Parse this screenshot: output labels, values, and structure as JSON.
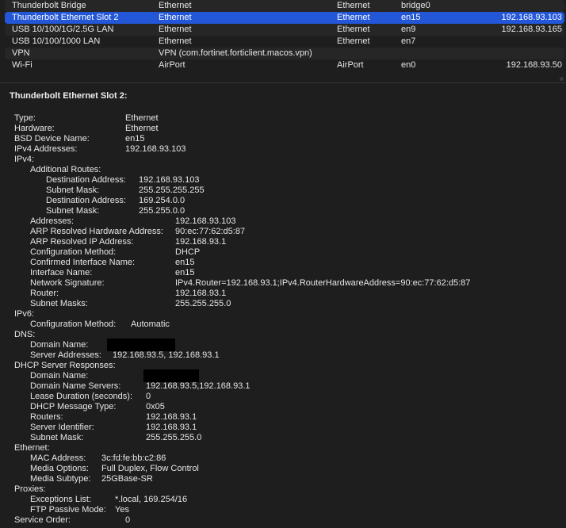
{
  "table": {
    "rows": [
      {
        "name": "Thunderbolt Bridge",
        "type": "Ethernet",
        "hardware": "Ethernet",
        "bsd": "bridge0",
        "ip": ""
      },
      {
        "name": "Thunderbolt Ethernet Slot 2",
        "type": "Ethernet",
        "hardware": "Ethernet",
        "bsd": "en15",
        "ip": "192.168.93.103",
        "selected": true
      },
      {
        "name": "USB 10/100/1G/2.5G LAN",
        "type": "Ethernet",
        "hardware": "Ethernet",
        "bsd": "en9",
        "ip": "192.168.93.165"
      },
      {
        "name": "USB 10/100/1000 LAN",
        "type": "Ethernet",
        "hardware": "Ethernet",
        "bsd": "en7",
        "ip": ""
      },
      {
        "name": "VPN",
        "type": "VPN (com.fortinet.forticlient.macos.vpn)",
        "hardware": "",
        "bsd": "",
        "ip": ""
      },
      {
        "name": "Wi-Fi",
        "type": "AirPort",
        "hardware": "AirPort",
        "bsd": "en0",
        "ip": "192.168.93.50"
      }
    ]
  },
  "detail": {
    "title": "Thunderbolt Ethernet Slot 2:",
    "rows": [
      {
        "label": "Type:",
        "value": "Ethernet"
      },
      {
        "label": "Hardware:",
        "value": "Ethernet"
      },
      {
        "label": "BSD Device Name:",
        "value": "en15"
      },
      {
        "label": "IPv4 Addresses:",
        "value": "192.168.93.103"
      },
      {
        "label": "IPv4:",
        "value": ""
      },
      {
        "label": "Additional Routes:",
        "value": ""
      },
      {
        "label": "Destination Address:",
        "value": "192.168.93.103"
      },
      {
        "label": "Subnet Mask:",
        "value": "255.255.255.255"
      },
      {
        "label": "Destination Address:",
        "value": "169.254.0.0"
      },
      {
        "label": "Subnet Mask:",
        "value": "255.255.0.0"
      },
      {
        "label": "Addresses:",
        "value": "192.168.93.103"
      },
      {
        "label": "ARP Resolved Hardware Address:",
        "value": "90:ec:77:62:d5:87"
      },
      {
        "label": "ARP Resolved IP Address:",
        "value": "192.168.93.1"
      },
      {
        "label": "Configuration Method:",
        "value": "DHCP"
      },
      {
        "label": "Confirmed Interface Name:",
        "value": "en15"
      },
      {
        "label": "Interface Name:",
        "value": "en15"
      },
      {
        "label": "Network Signature:",
        "value": "IPv4.Router=192.168.93.1;IPv4.RouterHardwareAddress=90:ec:77:62:d5:87"
      },
      {
        "label": "Router:",
        "value": "192.168.93.1"
      },
      {
        "label": "Subnet Masks:",
        "value": "255.255.255.0"
      },
      {
        "label": "IPv6:",
        "value": ""
      },
      {
        "label": "Configuration Method:",
        "value": "Automatic"
      },
      {
        "label": "DNS:",
        "value": ""
      },
      {
        "label": "Domain Name:",
        "value": "",
        "redacted": true
      },
      {
        "label": "Server Addresses:",
        "value": "192.168.93.5, 192.168.93.1"
      },
      {
        "label": "DHCP Server Responses:",
        "value": ""
      },
      {
        "label": "Domain Name:",
        "value": "",
        "redacted": true
      },
      {
        "label": "Domain Name Servers:",
        "value": "192.168.93.5,192.168.93.1"
      },
      {
        "label": "Lease Duration (seconds):",
        "value": "0"
      },
      {
        "label": "DHCP Message Type:",
        "value": "0x05"
      },
      {
        "label": "Routers:",
        "value": "192.168.93.1"
      },
      {
        "label": "Server Identifier:",
        "value": "192.168.93.1"
      },
      {
        "label": "Subnet Mask:",
        "value": "255.255.255.0"
      },
      {
        "label": "Ethernet:",
        "value": ""
      },
      {
        "label": "MAC Address:",
        "value": "3c:fd:fe:bb:c2:86"
      },
      {
        "label": "Media Options:",
        "value": "Full Duplex, Flow Control"
      },
      {
        "label": "Media Subtype:",
        "value": "25GBase-SR"
      },
      {
        "label": "Proxies:",
        "value": ""
      },
      {
        "label": "Exceptions List:",
        "value": "*.local, 169.254/16"
      },
      {
        "label": "FTP Passive Mode:",
        "value": "Yes"
      },
      {
        "label": "Service Order:",
        "value": "0"
      }
    ]
  },
  "colors": {
    "selection": "#2357d8",
    "background": "#1e1e1e"
  }
}
